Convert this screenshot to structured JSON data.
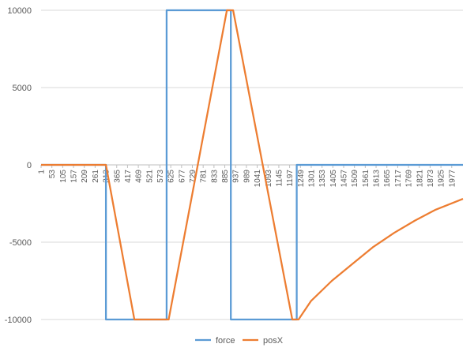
{
  "chart_data": {
    "type": "line",
    "title": "",
    "xlabel": "",
    "ylabel": "",
    "ylim": [
      -10000,
      10000
    ],
    "yticks": [
      10000,
      5000,
      0,
      -5000,
      -10000
    ],
    "y_tick_labels": [
      "10000",
      "5000",
      "0",
      "-5000",
      "-10000"
    ],
    "xlim": [
      1,
      2031
    ],
    "x_tick_labels": [
      "1",
      "53",
      "105",
      "157",
      "209",
      "261",
      "313",
      "365",
      "417",
      "469",
      "521",
      "573",
      "625",
      "677",
      "729",
      "781",
      "833",
      "885",
      "937",
      "989",
      "1041",
      "1093",
      "1145",
      "1197",
      "1249",
      "1301",
      "1353",
      "1405",
      "1457",
      "1509",
      "1561",
      "1613",
      "1665",
      "1717",
      "1769",
      "1821",
      "1873",
      "1925",
      "1977"
    ],
    "grid": true,
    "legend_position": "bottom",
    "series": [
      {
        "name": "force",
        "color": "#5B9BD5",
        "x": [
          1,
          313,
          313,
          605,
          605,
          914,
          914,
          1231,
          1231,
          2031
        ],
        "y": [
          0,
          0,
          -10000,
          -10000,
          10000,
          10000,
          -10000,
          -10000,
          0,
          0
        ]
      },
      {
        "name": "posX",
        "color": "#ED7D31",
        "x": [
          1,
          313,
          450,
          615,
          895,
          925,
          1210,
          1240,
          1300,
          1400,
          1500,
          1600,
          1700,
          1800,
          1900,
          2031
        ],
        "y": [
          0,
          0,
          -10000,
          -10000,
          10000,
          10000,
          -10000,
          -10000,
          -8800,
          -7500,
          -6400,
          -5300,
          -4400,
          -3600,
          -2900,
          -2200
        ]
      }
    ]
  }
}
